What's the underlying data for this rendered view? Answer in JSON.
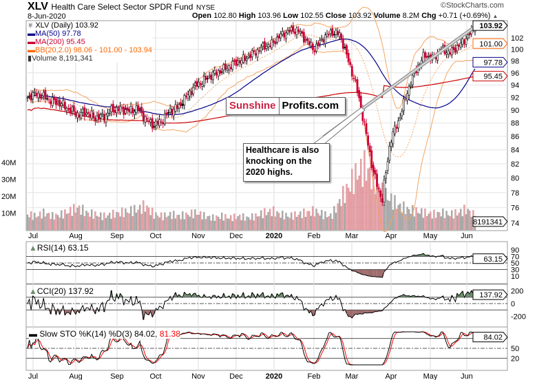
{
  "header": {
    "symbol": "XLV",
    "name": "Health Care Select Sector SPDR Fund",
    "exchange": "NYSE",
    "date": "8-Jun-2020",
    "open_label": "Open",
    "open": "102.80",
    "high_label": "High",
    "high": "103.96",
    "low_label": "Low",
    "low": "102.55",
    "close_label": "Close",
    "close": "103.92",
    "volume_label": "Volume",
    "volume": "8.2M",
    "chg_label": "Chg",
    "chg": "+0.71 (+0.69%)",
    "copyright": "©StockCharts.com"
  },
  "legend": {
    "price": "XLV (Daily) 103.92",
    "ma50": "MA(50) 97.78",
    "ma200": "MA(200) 95.45",
    "bb": "BB(20,2.0) 98.06 - 101.00 - 103.94",
    "volume": "Volume 8,191,341"
  },
  "annotation": {
    "brand_a": "Sunshine",
    "brand_b": "Profits.com",
    "callout": "Healthcare is also knocking on the 2020 highs."
  },
  "colors": {
    "ma50": "#00008b",
    "ma200": "#cc0000",
    "bb": "#f4a460",
    "up": "#000000",
    "down": "#cc0033",
    "volume_up": "#aaaaaa",
    "volume_down": "#e8a0a8",
    "pos_fill": "#6b8e6b",
    "neg_fill": "#9e6b6b",
    "stoD": "#ff0000"
  },
  "chart_data": [
    {
      "type": "candlestick",
      "title": "XLV (Daily)",
      "x_labels": [
        "Jul",
        "Aug",
        "Sep",
        "Oct",
        "Nov",
        "Dec",
        "2020",
        "Feb",
        "Mar",
        "Apr",
        "May",
        "Jun"
      ],
      "y_ticks": [
        74,
        76,
        78,
        80,
        82,
        84,
        86,
        88,
        90,
        92,
        94,
        96,
        98,
        100,
        102
      ],
      "ylim": [
        73,
        105
      ],
      "weekly_close": [
        92.0,
        92.6,
        92.0,
        91.4,
        91.0,
        90.0,
        89.3,
        89.6,
        88.8,
        89.0,
        90.0,
        90.2,
        89.8,
        90.3,
        88.6,
        87.6,
        88.5,
        90.0,
        90.6,
        92.5,
        94.0,
        94.8,
        95.8,
        96.4,
        97.2,
        97.9,
        98.6,
        99.5,
        100.5,
        101.0,
        102.5,
        103.2,
        103.4,
        101.5,
        100.0,
        102.0,
        103.0,
        102.6,
        98.0,
        93.5,
        87.0,
        80.5,
        77.0,
        85.5,
        88.5,
        93.0,
        96.5,
        99.0,
        98.4,
        100.0,
        99.4,
        100.5,
        102.0,
        103.92
      ],
      "weekly_volume_m": [
        9,
        8,
        10,
        8,
        9,
        11,
        13,
        10,
        9,
        8,
        9,
        10,
        11,
        12,
        14,
        9,
        8,
        9,
        8,
        9,
        10,
        8,
        7,
        8,
        7,
        8,
        7,
        8,
        10,
        11,
        9,
        8,
        9,
        10,
        11,
        9,
        8,
        17,
        25,
        33,
        37,
        30,
        22,
        18,
        14,
        12,
        11,
        10,
        9,
        10,
        9,
        10,
        12,
        8.19
      ],
      "last": {
        "close": 103.92,
        "ma50": 97.78,
        "ma200": 95.45,
        "bb_lower": 98.06,
        "bb_mid": 101.0,
        "bb_upper": 103.94,
        "volume": 8191341
      },
      "price_tag": "103.92",
      "bb_tag": "101.00",
      "ma50_tag": "97.78",
      "ma200_tag": "95.45",
      "volume_tag": "8191341",
      "volume_ticks": [
        "10M",
        "20M",
        "30M",
        "40M"
      ]
    },
    {
      "type": "line",
      "title": "RSI(14) 63.15",
      "last": 63.15,
      "tag": "63.15",
      "y_ticks": [
        "90",
        "70",
        "50",
        "30",
        "10"
      ]
    },
    {
      "type": "line",
      "title": "CCI(20) 137.92",
      "last": 137.92,
      "tag": "137.92",
      "y_ticks": [
        "200",
        "0",
        "-200"
      ]
    },
    {
      "type": "line",
      "title_k": "Slow STO %K(14) %D(3) 84.02,",
      "title_d": "81.38",
      "last_k": 84.02,
      "last_d": 81.38,
      "tag": "84.02",
      "y_ticks": [
        "50",
        "20"
      ]
    }
  ]
}
